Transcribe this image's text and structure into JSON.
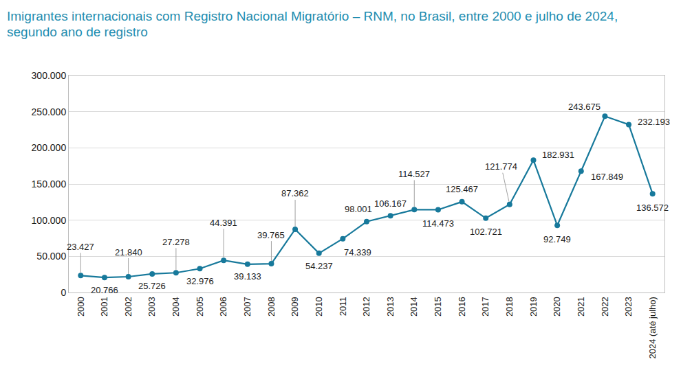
{
  "chart_data": {
    "type": "line",
    "title": "Imigrantes internacionais com Registro Nacional Migratório – RNM, no Brasil, entre 2000 e julho de 2024, segundo ano de registro",
    "categories": [
      "2000",
      "2001",
      "2002",
      "2003",
      "2004",
      "2005",
      "2006",
      "2007",
      "2008",
      "2009",
      "2010",
      "2011",
      "2012",
      "2013",
      "2014",
      "2015",
      "2016",
      "2017",
      "2018",
      "2019",
      "2020",
      "2021",
      "2022",
      "2023",
      "2024 (até julho)"
    ],
    "values": [
      23427,
      20766,
      21840,
      25726,
      27278,
      32976,
      44391,
      39133,
      39765,
      87362,
      54237,
      74339,
      98001,
      106167,
      114527,
      114473,
      125467,
      102721,
      121774,
      182931,
      92749,
      167849,
      243675,
      232193,
      136572
    ],
    "value_labels": [
      "23.427",
      "20.766",
      "21.840",
      "25.726",
      "27.278",
      "32.976",
      "44.391",
      "39.133",
      "39.765",
      "87.362",
      "54.237",
      "74.339",
      "98.001",
      "106.167",
      "114.527",
      "114.473",
      "125.467",
      "102.721",
      "121.774",
      "182.931",
      "92.749",
      "167.849",
      "243.675",
      "232.193",
      "136.572"
    ],
    "color": "#17799b",
    "marker": "circle",
    "data_labels": true,
    "grid": true,
    "ylim": [
      0,
      300000
    ],
    "yticks": [
      0,
      {
        "value": 50000,
        "label": "50.000"
      },
      {
        "value": 100000,
        "label": "100.000"
      },
      {
        "value": 150000,
        "label": "150.000"
      },
      {
        "value": 200000,
        "label": "200.000"
      },
      {
        "value": 250000,
        "label": "250.000"
      },
      {
        "value": 300000,
        "label": "300.000"
      }
    ]
  }
}
